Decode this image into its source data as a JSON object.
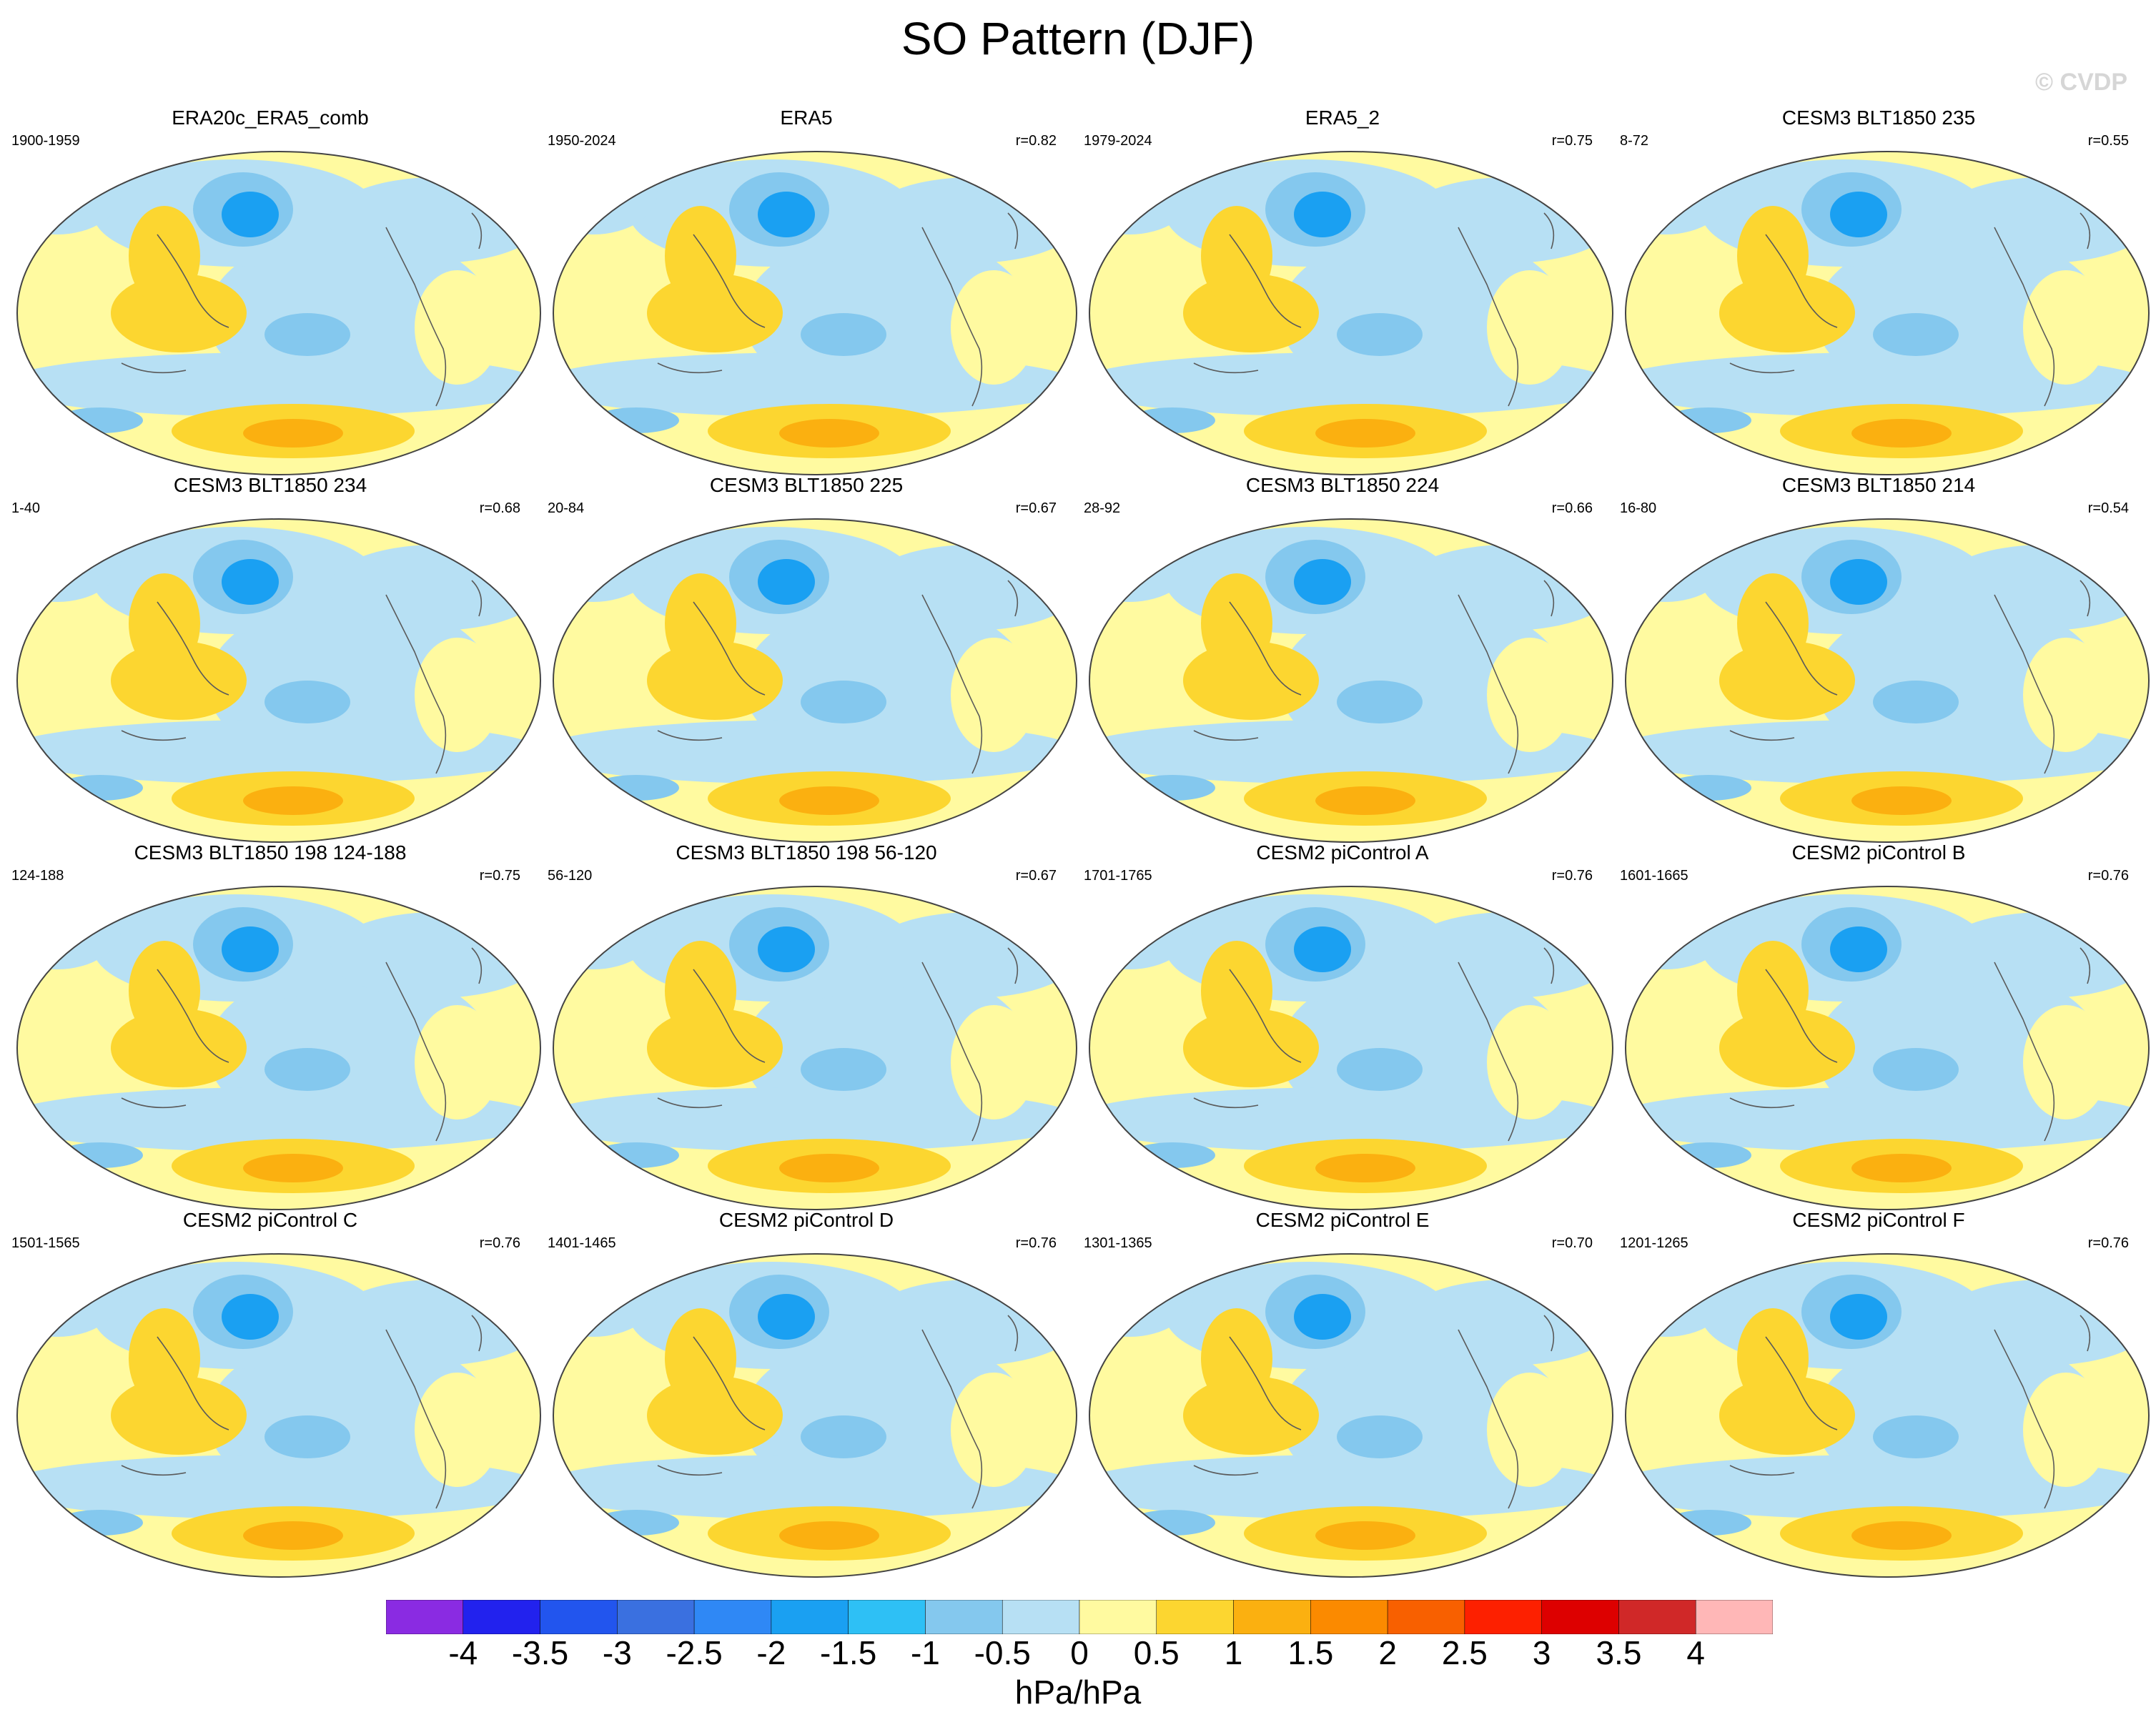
{
  "title": "SO Pattern (DJF)",
  "watermark": "© CVDP",
  "units": "hPa/hPa",
  "colorbar": {
    "labels": [
      "-4",
      "-3.5",
      "-3",
      "-2.5",
      "-2",
      "-1.5",
      "-1",
      "-0.5",
      "0",
      "0.5",
      "1",
      "1.5",
      "2",
      "2.5",
      "3",
      "3.5",
      "4"
    ],
    "colors": [
      "#8a2be2",
      "#2222ee",
      "#2255ee",
      "#3a70e0",
      "#2f88f5",
      "#1aa0f2",
      "#2ec0f5",
      "#84c8ee",
      "#b7e0f4",
      "#fffaa0",
      "#fcd630",
      "#fbb010",
      "#fb8a00",
      "#f86000",
      "#fd2000",
      "#dd0000",
      "#d02828",
      "#ffb7b7"
    ]
  },
  "panels": [
    {
      "title": "ERA20c_ERA5_comb",
      "period": "1900-1959",
      "corr": ""
    },
    {
      "title": "ERA5",
      "period": "1950-2024",
      "corr": "r=0.82"
    },
    {
      "title": "ERA5_2",
      "period": "1979-2024",
      "corr": "r=0.75"
    },
    {
      "title": "CESM3 BLT1850 235",
      "period": "8-72",
      "corr": "r=0.55"
    },
    {
      "title": "CESM3 BLT1850 234",
      "period": "1-40",
      "corr": "r=0.68"
    },
    {
      "title": "CESM3 BLT1850 225",
      "period": "20-84",
      "corr": "r=0.67"
    },
    {
      "title": "CESM3 BLT1850 224",
      "period": "28-92",
      "corr": "r=0.66"
    },
    {
      "title": "CESM3 BLT1850 214",
      "period": "16-80",
      "corr": "r=0.54"
    },
    {
      "title": "CESM3 BLT1850 198 124-188",
      "period": "124-188",
      "corr": "r=0.75"
    },
    {
      "title": "CESM3 BLT1850 198 56-120",
      "period": "56-120",
      "corr": "r=0.67"
    },
    {
      "title": "CESM2 piControl A",
      "period": "1701-1765",
      "corr": "r=0.76"
    },
    {
      "title": "CESM2 piControl B",
      "period": "1601-1665",
      "corr": "r=0.76"
    },
    {
      "title": "CESM2 piControl C",
      "period": "1501-1565",
      "corr": "r=0.76"
    },
    {
      "title": "CESM2 piControl D",
      "period": "1401-1465",
      "corr": "r=0.76"
    },
    {
      "title": "CESM2 piControl E",
      "period": "1301-1365",
      "corr": "r=0.70"
    },
    {
      "title": "CESM2 piControl F",
      "period": "1201-1265",
      "corr": "r=0.76"
    }
  ]
}
